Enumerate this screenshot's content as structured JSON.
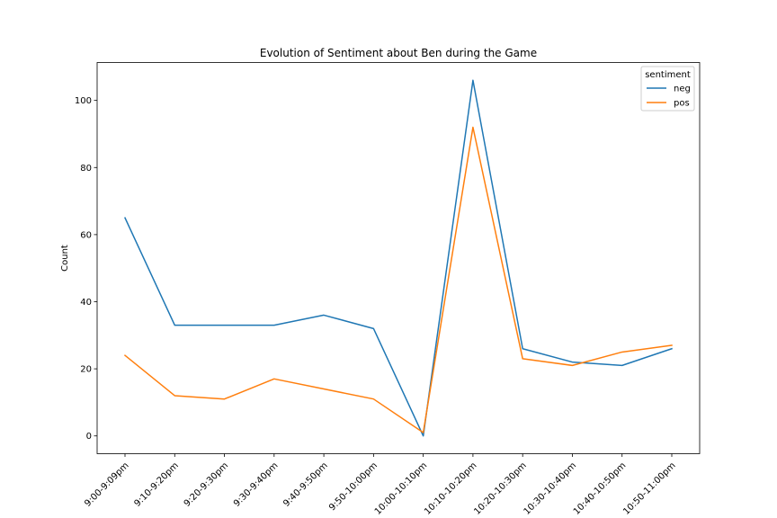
{
  "chart_data": {
    "type": "line",
    "title": "Evolution of Sentiment about Ben during the Game",
    "xlabel": "",
    "ylabel": "Count",
    "categories": [
      "9:00-9:09pm",
      "9:10-9:20pm",
      "9:20-9:30pm",
      "9:30-9:40pm",
      "9:40-9:50pm",
      "9:50-10:00pm",
      "10:00-10:10pm",
      "10:10-10:20pm",
      "10:20-10:30pm",
      "10:30-10:40pm",
      "10:40-10:50pm",
      "10:50-11:00pm"
    ],
    "series": [
      {
        "name": "neg",
        "color": "#1f77b4",
        "values": [
          65,
          33,
          33,
          33,
          36,
          32,
          0,
          106,
          26,
          22,
          21,
          26
        ]
      },
      {
        "name": "pos",
        "color": "#ff7f0e",
        "values": [
          24,
          12,
          11,
          17,
          14,
          11,
          1,
          92,
          23,
          21,
          25,
          27
        ]
      }
    ],
    "ylim": [
      -5.3,
      111.3
    ],
    "yticks": [
      0,
      20,
      40,
      60,
      80,
      100
    ],
    "grid": false,
    "legend": {
      "title": "sentiment",
      "placement": "upper right"
    }
  }
}
